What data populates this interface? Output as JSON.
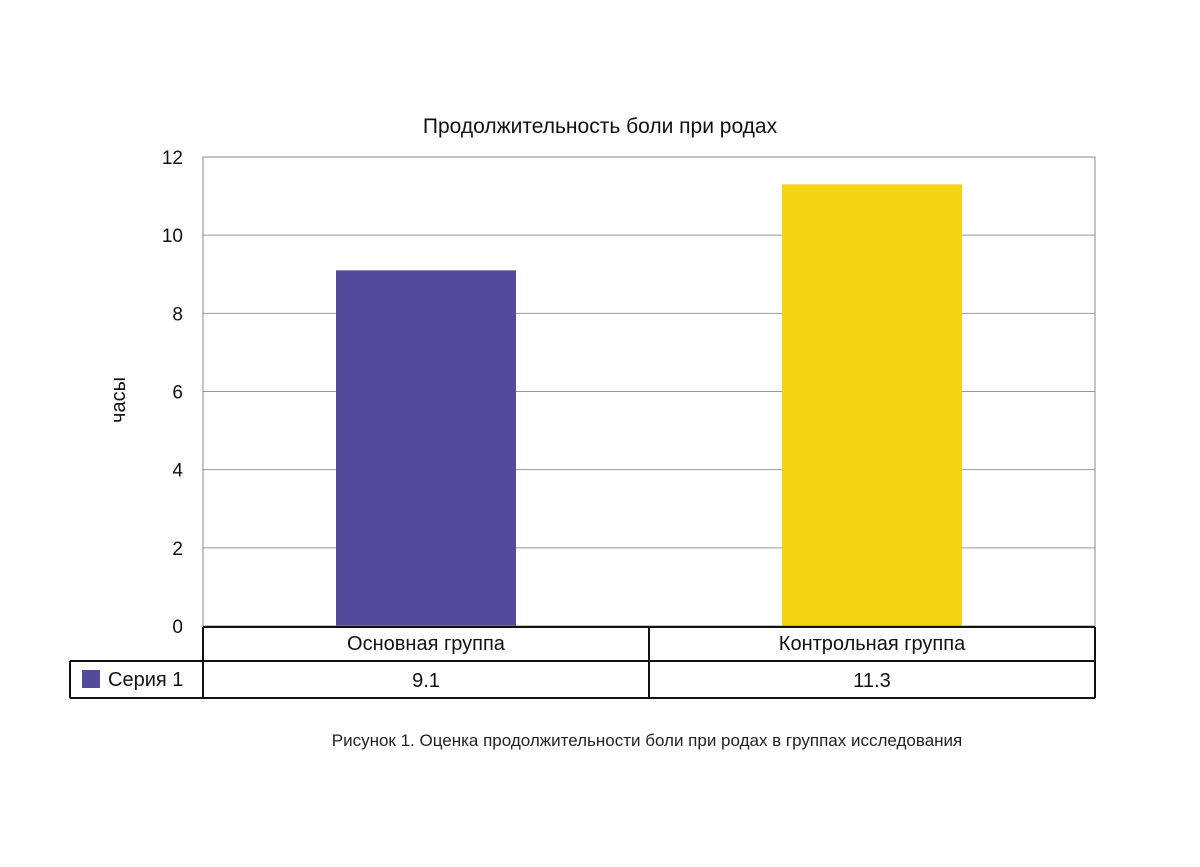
{
  "chart_data": {
    "type": "bar",
    "title": "Продолжительность боли при родах",
    "ylabel": "часы",
    "xlabel": "",
    "categories": [
      "Основная группа",
      "Контрольная группа"
    ],
    "series": [
      {
        "name": "Серия 1",
        "values": [
          9.1,
          11.3
        ],
        "value_labels": [
          "9.1",
          "11.3"
        ]
      }
    ],
    "bar_colors": [
      "#544a9a",
      "#f4d312"
    ],
    "legend_color": "#544a9a",
    "ylim": [
      0,
      12
    ],
    "yticks": [
      "0",
      "2",
      "4",
      "6",
      "8",
      "10",
      "12"
    ],
    "grid": true,
    "legend": "data-table"
  },
  "caption": "Рисунок 1. Оценка продолжительности боли при родах в группах исследования"
}
